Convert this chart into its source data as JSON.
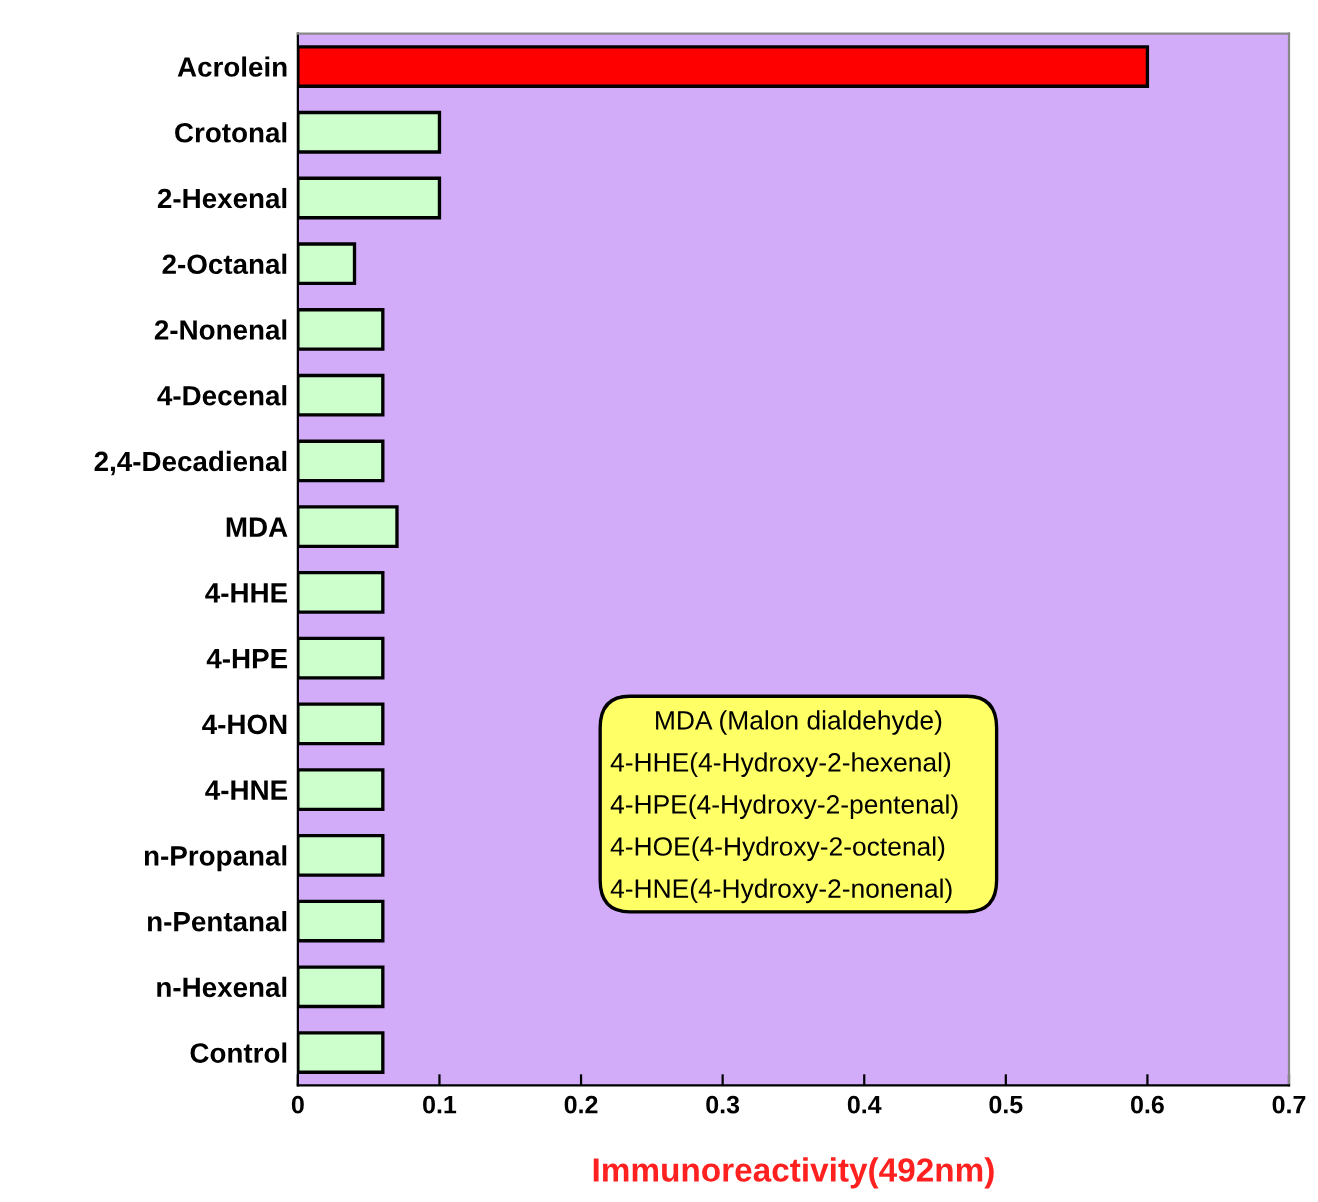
{
  "chart_data": {
    "type": "bar",
    "orientation": "horizontal",
    "categories": [
      "Acrolein",
      "Crotonal",
      "2-Hexenal",
      "2-Octanal",
      "2-Nonenal",
      "4-Decenal",
      "2,4-Decadienal",
      "MDA",
      "4-HHE",
      "4-HPE",
      "4-HON",
      "4-HNE",
      "n-Propanal",
      "n-Pentanal",
      "n-Hexenal",
      "Control"
    ],
    "values": [
      0.6,
      0.1,
      0.1,
      0.04,
      0.06,
      0.06,
      0.06,
      0.07,
      0.06,
      0.06,
      0.06,
      0.06,
      0.06,
      0.06,
      0.06,
      0.06
    ],
    "colors": [
      "#ff0000",
      "#ccffcc",
      "#ccffcc",
      "#ccffcc",
      "#ccffcc",
      "#ccffcc",
      "#ccffcc",
      "#ccffcc",
      "#ccffcc",
      "#ccffcc",
      "#ccffcc",
      "#ccffcc",
      "#ccffcc",
      "#ccffcc",
      "#ccffcc",
      "#ccffcc"
    ],
    "xlabel": "Immunoreactivity(492nm)",
    "xlim": [
      0,
      0.7
    ],
    "xticks": [
      0,
      0.1,
      0.2,
      0.3,
      0.4,
      0.5,
      0.6,
      0.7
    ],
    "grid": false,
    "annotations": [
      "MDA (Malon dialdehyde)",
      "4-HHE(4-Hydroxy-2-hexenal)",
      "4-HPE(4-Hydroxy-2-pentenal)",
      "4-HOE(4-Hydroxy-2-octenal)",
      "4-HNE(4-Hydroxy-2-nonenal)"
    ]
  }
}
